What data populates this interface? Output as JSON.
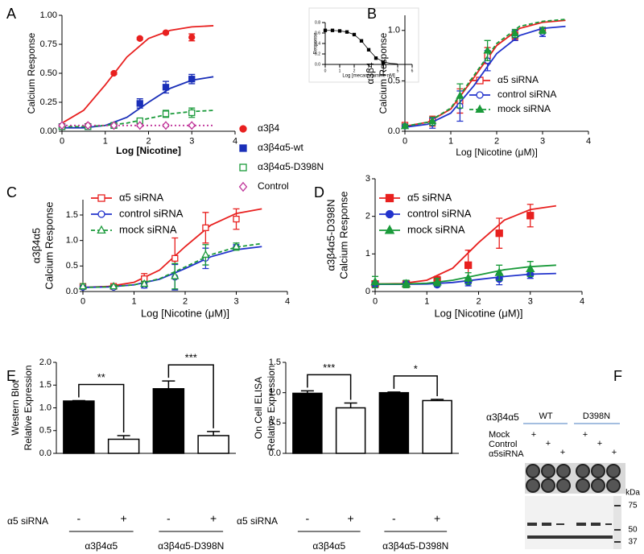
{
  "chart_data": [
    {
      "type": "line",
      "panel": "A",
      "xlabel": "Log [Nicotine]",
      "ylabel": [
        "Calcium Response"
      ],
      "x": [
        0,
        0.6,
        1.2,
        1.8,
        2.4,
        3
      ],
      "xlim": [
        0,
        4
      ],
      "xticks": [
        0,
        1,
        2,
        3,
        4
      ],
      "ylim": [
        0,
        1
      ],
      "yticks": [
        {
          "value": 0,
          "label": "0.00"
        },
        0.25,
        {
          "value": 0.5,
          "label": "0.50"
        },
        0.75,
        {
          "value": 1,
          "label": "1.00"
        }
      ],
      "series": [
        {
          "name": "α3β4",
          "color": "#e8201f",
          "marker": "circle",
          "filled": true,
          "dash": "solid",
          "values": [
            0.04,
            0.05,
            0.5,
            0.8,
            0.85,
            0.81
          ],
          "errors": [
            0.01,
            0.01,
            0.01,
            0.01,
            0.01,
            0.03
          ],
          "fit": {
            "x": [
              0,
              0.5,
              1,
              1.5,
              2,
              2.5,
              3,
              3.5
            ],
            "values": [
              0.07,
              0.18,
              0.4,
              0.64,
              0.8,
              0.87,
              0.9,
              0.91
            ]
          }
        },
        {
          "name": "α3β4α5-wt",
          "color": "#1a2fb8",
          "marker": "square",
          "filled": true,
          "dash": "solid",
          "values": [
            0.04,
            0.04,
            0.05,
            0.24,
            0.38,
            0.45
          ],
          "errors": [
            0.01,
            0.01,
            0.01,
            0.04,
            0.05,
            0.04
          ],
          "fit": {
            "x": [
              0,
              0.5,
              1,
              1.5,
              2,
              2.5,
              3,
              3.5
            ],
            "values": [
              0.03,
              0.03,
              0.05,
              0.12,
              0.25,
              0.37,
              0.44,
              0.47
            ]
          }
        },
        {
          "name": "α3β4α5-D398N",
          "color": "#1a9a3a",
          "marker": "square",
          "filled": false,
          "dash": "dashed",
          "values": [
            0.04,
            0.04,
            0.05,
            0.09,
            0.15,
            0.16
          ],
          "errors": [
            0.01,
            0.01,
            0.01,
            0.01,
            0.03,
            0.04
          ],
          "fit": {
            "x": [
              0,
              0.5,
              1,
              1.5,
              2,
              2.5,
              3,
              3.5
            ],
            "values": [
              0.04,
              0.04,
              0.05,
              0.07,
              0.11,
              0.15,
              0.17,
              0.18
            ]
          }
        },
        {
          "name": "Control",
          "color": "#c0359a",
          "marker": "diamond",
          "filled": false,
          "dash": "dotted",
          "values": [
            0.05,
            0.05,
            0.05,
            0.05,
            0.05,
            0.05
          ],
          "errors": [
            0.01,
            0.01,
            0.01,
            0.01,
            0.01,
            0.01
          ],
          "fit": {
            "x": [
              0,
              0.5,
              1,
              1.5,
              2,
              2.5,
              3,
              3.5
            ],
            "values": [
              0.05,
              0.05,
              0.05,
              0.05,
              0.05,
              0.05,
              0.05,
              0.05
            ]
          }
        }
      ]
    },
    {
      "type": "line",
      "xlabel": "Log [mecamylamine nM]",
      "ylabel": [
        "Response"
      ],
      "x": [
        0,
        0.5,
        1,
        1.5,
        2,
        2.5,
        3,
        3.5,
        4
      ],
      "xlim": [
        0,
        6
      ],
      "xticks": [
        0,
        1,
        2,
        3,
        4,
        5,
        6
      ],
      "ylim": [
        0,
        0.8
      ],
      "yticks": [
        {
          "value": 0,
          "label": "0.0"
        },
        0.2,
        0.4,
        0.6,
        0.8
      ],
      "series": [
        {
          "color": "#000000",
          "marker": "square",
          "filled": true,
          "dash": "solid",
          "values": [
            0.65,
            0.65,
            0.64,
            0.62,
            0.57,
            0.45,
            0.28,
            0.12,
            0.04
          ],
          "fit": {
            "x": [
              0,
              0.5,
              1,
              1.5,
              2,
              2.5,
              3,
              3.5,
              4,
              4.5,
              5
            ],
            "values": [
              0.65,
              0.65,
              0.64,
              0.62,
              0.57,
              0.45,
              0.28,
              0.13,
              0.05,
              0.02,
              0.01
            ]
          }
        }
      ]
    },
    {
      "type": "line",
      "panel": "B",
      "xlabel": "Log [Nicotine (μM)]",
      "ylabel": [
        "α3β4",
        "Calcium Response"
      ],
      "x": [
        0,
        0.6,
        1.2,
        1.8,
        2.4,
        3
      ],
      "xlim": [
        0,
        4
      ],
      "xticks": [
        0,
        1,
        2,
        3,
        4
      ],
      "ylim": [
        0,
        1.15
      ],
      "yticks": [
        {
          "value": 0,
          "label": "0.0"
        },
        0.5,
        {
          "value": 1,
          "label": "1.0"
        }
      ],
      "series": [
        {
          "name": "α5 siRNA",
          "color": "#e8201f",
          "marker": "square",
          "filled": false,
          "dash": "solid",
          "values": [
            0.06,
            0.1,
            0.3,
            0.75,
            0.95,
            1.0
          ],
          "errors": [
            0.02,
            0.05,
            0.12,
            0.08,
            0.04,
            0.03
          ],
          "fit": {
            "x": [
              0,
              0.5,
              1,
              1.5,
              2,
              2.5,
              3,
              3.5
            ],
            "values": [
              0.05,
              0.09,
              0.22,
              0.53,
              0.85,
              1.02,
              1.08,
              1.1
            ]
          }
        },
        {
          "name": "control siRNA",
          "color": "#2233cc",
          "marker": "circle",
          "filled": false,
          "dash": "solid",
          "values": [
            0.05,
            0.08,
            0.25,
            0.7,
            0.95,
            0.98
          ],
          "errors": [
            0.02,
            0.05,
            0.15,
            0.1,
            0.05,
            0.04
          ],
          "fit": {
            "x": [
              0,
              0.5,
              1,
              1.5,
              2,
              2.5,
              3,
              3.5
            ],
            "values": [
              0.04,
              0.07,
              0.18,
              0.45,
              0.77,
              0.95,
              1.02,
              1.04
            ]
          }
        },
        {
          "name": "mock siRNA",
          "color": "#1a9a3a",
          "marker": "triangle",
          "filled": true,
          "dash": "dashed",
          "values": [
            0.05,
            0.1,
            0.35,
            0.8,
            0.97,
            1.0
          ],
          "errors": [
            0.02,
            0.04,
            0.12,
            0.1,
            0.04,
            0.03
          ],
          "fit": {
            "x": [
              0,
              0.5,
              1,
              1.5,
              2,
              2.5,
              3,
              3.5
            ],
            "values": [
              0.05,
              0.09,
              0.23,
              0.55,
              0.87,
              1.04,
              1.09,
              1.11
            ]
          }
        }
      ]
    },
    {
      "type": "line",
      "panel": "C",
      "xlabel": "Log [Nicotine (μM)]",
      "ylabel": [
        "α3β4α5",
        "Calcium Response"
      ],
      "x": [
        0,
        0.6,
        1.2,
        1.8,
        2.4,
        3
      ],
      "xlim": [
        0,
        4
      ],
      "xticks": [
        0,
        1,
        2,
        3,
        4
      ],
      "ylim": [
        0,
        1.8
      ],
      "yticks": [
        {
          "value": 0,
          "label": "0.0"
        },
        0.5,
        {
          "value": 1,
          "label": "1.0"
        },
        1.5
      ],
      "series": [
        {
          "name": "α5 siRNA",
          "color": "#e8201f",
          "marker": "square",
          "filled": false,
          "dash": "solid",
          "values": [
            0.1,
            0.1,
            0.25,
            0.65,
            1.25,
            1.42
          ],
          "errors": [
            0.03,
            0.03,
            0.1,
            0.4,
            0.3,
            0.2
          ],
          "fit": {
            "x": [
              0,
              0.5,
              1,
              1.5,
              2,
              2.5,
              3,
              3.5
            ],
            "values": [
              0.08,
              0.1,
              0.18,
              0.42,
              0.88,
              1.3,
              1.53,
              1.62
            ]
          }
        },
        {
          "name": "control siRNA",
          "color": "#2233cc",
          "marker": "circle",
          "filled": false,
          "dash": "solid",
          "values": [
            0.08,
            0.08,
            0.12,
            0.28,
            0.65,
            0.87
          ],
          "errors": [
            0.03,
            0.02,
            0.05,
            0.25,
            0.2,
            0.05
          ],
          "fit": {
            "x": [
              0,
              0.5,
              1,
              1.5,
              2,
              2.5,
              3,
              3.5
            ],
            "values": [
              0.08,
              0.09,
              0.13,
              0.24,
              0.45,
              0.68,
              0.82,
              0.88
            ]
          }
        },
        {
          "name": "mock siRNA",
          "color": "#1a9a3a",
          "marker": "triangle",
          "filled": false,
          "dash": "dashed",
          "values": [
            0.1,
            0.1,
            0.15,
            0.3,
            0.72,
            0.88
          ],
          "errors": [
            0.05,
            0.03,
            0.05,
            0.25,
            0.2,
            0.07
          ],
          "fit": {
            "x": [
              0,
              0.5,
              1,
              1.5,
              2,
              2.5,
              3,
              3.5
            ],
            "values": [
              0.08,
              0.09,
              0.13,
              0.25,
              0.48,
              0.72,
              0.87,
              0.94
            ]
          }
        }
      ]
    },
    {
      "type": "line",
      "panel": "D",
      "xlabel": "Log [Nicotine (μM)]",
      "ylabel": [
        "α3β4α5-D398N",
        "Calcium Response"
      ],
      "x": [
        0,
        0.6,
        1.2,
        1.8,
        2.4,
        3
      ],
      "xlim": [
        0,
        4
      ],
      "xticks": [
        0,
        1,
        2,
        3,
        4
      ],
      "ylim": [
        0,
        3
      ],
      "yticks": [
        0,
        1,
        2,
        3
      ],
      "series": [
        {
          "name": "α5 siRNA",
          "color": "#e8201f",
          "marker": "square",
          "filled": true,
          "dash": "solid",
          "values": [
            0.2,
            0.2,
            0.3,
            0.7,
            1.55,
            2.02
          ],
          "errors": [
            0.05,
            0.05,
            0.1,
            0.4,
            0.4,
            0.3
          ],
          "fit": {
            "x": [
              0,
              0.5,
              1,
              1.5,
              2,
              2.5,
              3,
              3.5
            ],
            "values": [
              0.2,
              0.21,
              0.3,
              0.62,
              1.3,
              1.9,
              2.18,
              2.28
            ]
          }
        },
        {
          "name": "control siRNA",
          "color": "#2233cc",
          "marker": "circle",
          "filled": true,
          "dash": "solid",
          "values": [
            0.2,
            0.2,
            0.18,
            0.25,
            0.33,
            0.45
          ],
          "errors": [
            0.05,
            0.05,
            0.05,
            0.1,
            0.15,
            0.1
          ],
          "fit": {
            "x": [
              0,
              0.5,
              1,
              1.5,
              2,
              2.5,
              3,
              3.5
            ],
            "values": [
              0.19,
              0.19,
              0.2,
              0.24,
              0.32,
              0.4,
              0.46,
              0.48
            ]
          }
        },
        {
          "name": "mock siRNA",
          "color": "#1a9a3a",
          "marker": "triangle",
          "filled": true,
          "dash": "solid",
          "values": [
            0.25,
            0.2,
            0.25,
            0.35,
            0.5,
            0.6
          ],
          "errors": [
            0.15,
            0.1,
            0.1,
            0.15,
            0.2,
            0.2
          ],
          "fit": {
            "x": [
              0,
              0.5,
              1,
              1.5,
              2,
              2.5,
              3,
              3.5
            ],
            "values": [
              0.2,
              0.2,
              0.22,
              0.3,
              0.44,
              0.58,
              0.66,
              0.7
            ]
          }
        }
      ]
    },
    {
      "type": "bar",
      "panel": "E",
      "ylabel": [
        "Western Blot",
        "Relative Expression"
      ],
      "categories": [
        "-",
        "+",
        "-",
        "+"
      ],
      "values": [
        1.15,
        0.31,
        1.42,
        0.39
      ],
      "errors": [
        0.01,
        0.08,
        0.17,
        0.09
      ],
      "colors": [
        "#000000",
        "#ffffff",
        "#000000",
        "#ffffff"
      ],
      "ylim": [
        0,
        2
      ],
      "yticks": [
        {
          "value": 0,
          "label": "0.0"
        },
        0.5,
        {
          "value": 1,
          "label": "1.0"
        },
        1.5,
        {
          "value": 2,
          "label": "2.0"
        }
      ],
      "row_label": "α5 siRNA",
      "groups": [
        "α3β4α5",
        "α3β4α5-D398N"
      ],
      "significance": [
        "**",
        "***"
      ]
    },
    {
      "type": "bar",
      "ylabel": [
        "On Cell ELISA",
        "Relative Expression"
      ],
      "categories": [
        "-",
        "+",
        "-",
        "+"
      ],
      "values": [
        0.99,
        0.75,
        1.0,
        0.87
      ],
      "errors": [
        0.04,
        0.08,
        0.01,
        0.02
      ],
      "colors": [
        "#000000",
        "#ffffff",
        "#000000",
        "#ffffff"
      ],
      "ylim": [
        0,
        1.5
      ],
      "yticks": [
        {
          "value": 0,
          "label": "0.0"
        },
        0.5,
        {
          "value": 1,
          "label": "1.0"
        },
        1.5
      ],
      "row_label": "α5 siRNA",
      "groups": [
        "α3β4α5",
        "α3β4α5-D398N"
      ],
      "significance": [
        "***",
        "*"
      ]
    }
  ],
  "blot": {
    "panel": "F",
    "construct": "α3β4α5",
    "lanes": [
      "WT",
      "D398N"
    ],
    "conditions": [
      "Mock",
      "Control",
      "α5siRNA"
    ],
    "marks": [
      "+",
      "+",
      "+",
      "+",
      "+",
      "+"
    ],
    "unit": "kDa",
    "ladder": [
      "75",
      "50",
      "37"
    ]
  }
}
